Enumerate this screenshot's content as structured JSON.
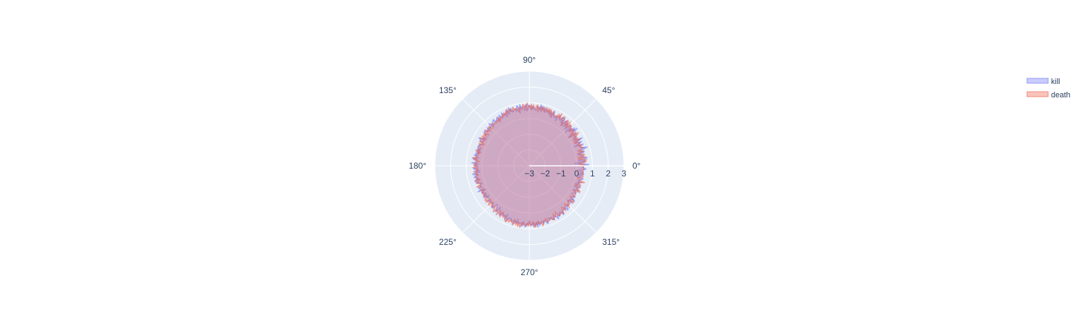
{
  "chart_data": {
    "type": "polar-area",
    "angular_axis": {
      "unit": "degrees",
      "tick_values": [
        0,
        45,
        90,
        135,
        180,
        225,
        270,
        315
      ],
      "tick_labels": [
        "0°",
        "45°",
        "90°",
        "135°",
        "180°",
        "225°",
        "270°",
        "315°"
      ],
      "direction": "counterclockwise",
      "rotation": 0
    },
    "radial_axis": {
      "range": [
        -3,
        3
      ],
      "tick_values": [
        -3,
        -2,
        -1,
        0,
        1,
        2,
        3
      ],
      "tick_labels": [
        "−3",
        "−2",
        "−1",
        "0",
        "1",
        "2",
        "3"
      ],
      "angle": 0
    },
    "grid": true,
    "legend_placement": "top-right",
    "series": [
      {
        "name": "kill",
        "color": "#636efa",
        "fill": "toself",
        "opacity": 0.5,
        "theta_step": 1,
        "r": [
          0.46,
          0.79,
          0.47,
          -0.1,
          0.38,
          0.58,
          0.12,
          0.52,
          0.71,
          0.43,
          0.47,
          0.46,
          0.33,
          0.16,
          0.56,
          0.6,
          0.31,
          0.56,
          0.86,
          0.5,
          0.44,
          0.42,
          0.69,
          0.08,
          0.49,
          0.66,
          0.24,
          0.53,
          0.8,
          0.36,
          0.43,
          0.22,
          0.54,
          0.42,
          0.48,
          0.61,
          0.04,
          0.35,
          0.84,
          0.53,
          0.74,
          0.32,
          0.58,
          0.12,
          0.63,
          0.61,
          0.21,
          0.49,
          0.66,
          0.3,
          0.67,
          0.67,
          0.23,
          0.76,
          0.38,
          0.77,
          0.63,
          0.52,
          0.68,
          0.64,
          0.32,
          0.63,
          0.52,
          0.43,
          0.55,
          0.81,
          0.36,
          0.64,
          0.72,
          0.47,
          0.76,
          0.63,
          0.68,
          0.74,
          0.52,
          0.85,
          0.66,
          0.87,
          0.51,
          0.95,
          0.61,
          0.77,
          0.8,
          0.53,
          0.62,
          0.59,
          0.72,
          0.78,
          0.56,
          0.8,
          0.85,
          0.73,
          0.51,
          0.92,
          0.85,
          0.52,
          0.72,
          0.77,
          0.71,
          0.94,
          0.38,
          0.82,
          0.89,
          0.54,
          0.69,
          0.73,
          0.61,
          0.57,
          0.83,
          0.65,
          0.92,
          0.49,
          0.7,
          0.83,
          0.4,
          0.64,
          0.66,
          0.65,
          0.8,
          0.46,
          0.55,
          0.75,
          0.52,
          0.36,
          0.69,
          0.63,
          0.54,
          0.5,
          0.73,
          0.67,
          0.6,
          0.59,
          0.37,
          0.56,
          0.71,
          0.46,
          0.52,
          0.45,
          0.61,
          0.43,
          0.48,
          0.46,
          0.61,
          0.58,
          0.37,
          0.44,
          0.31,
          0.22,
          0.35,
          0.42,
          0.24,
          0.67,
          0.51,
          0.5,
          0.28,
          0.26,
          0.24,
          0.45,
          0.46,
          0.48,
          0.47,
          0.48,
          0.26,
          0.48,
          0.25,
          0.47,
          0.27,
          0.51,
          0.42,
          0.57,
          0.35,
          0.27,
          0.58,
          0.61,
          0.39,
          0.37,
          0.34,
          0.67,
          0.25,
          0.46,
          0.5,
          0.28,
          0.32,
          0.54,
          0.47,
          0.21,
          0.43,
          0.18,
          0.61,
          0.62,
          0.29,
          0.51,
          0.6,
          0.37,
          0.48,
          0.27,
          0.59,
          0.54,
          0.55,
          0.33,
          0.19,
          0.29,
          0.37,
          0.32,
          0.54,
          0.46,
          0.43,
          0.66,
          0.15,
          0.45,
          0.48,
          0.42,
          0.24,
          0.45,
          0.28,
          0.56,
          0.18,
          0.38,
          0.29,
          0.28,
          0.31,
          0.49,
          0.34,
          0.37,
          0.33,
          0.39,
          0.3,
          0.43,
          0.57,
          0.56,
          0.22,
          0.25,
          0.33,
          0.52,
          0.63,
          0.22,
          0.4,
          0.43,
          0.65,
          0.66,
          0.44,
          0.51,
          0.6,
          0.51,
          0.49,
          0.74,
          0.37,
          0.76,
          0.68,
          0.53,
          0.6,
          0.54,
          0.71,
          0.7,
          0.61,
          0.81,
          0.62,
          0.74,
          0.47,
          0.75,
          0.68,
          0.67,
          0.73,
          0.86,
          0.57,
          0.73,
          0.89,
          0.8,
          0.65,
          0.8,
          0.5,
          0.71,
          0.79,
          0.62,
          0.87,
          0.65,
          0.83,
          0.64,
          0.94,
          0.58,
          0.84,
          0.7,
          0.71,
          0.58,
          0.79,
          0.66,
          0.64,
          0.78,
          0.85,
          0.55,
          0.53,
          0.68,
          0.6,
          0.55,
          0.74,
          0.76,
          0.56,
          0.59,
          0.71,
          0.83,
          0.57,
          0.72,
          0.68,
          0.5,
          0.51,
          0.79,
          0.62,
          0.53,
          0.54,
          0.55,
          0.44,
          0.72,
          0.68,
          0.43,
          0.51,
          0.53,
          0.39,
          0.4,
          0.27,
          0.62,
          0.42,
          0.34,
          0.63,
          0.49,
          0.32,
          0.52,
          0.46,
          0.21,
          0.27,
          0.41,
          0.44,
          0.31,
          0.18,
          0.51,
          0.38,
          0.33,
          0.12,
          0.52,
          0.45,
          0.14,
          0.33,
          0.22,
          0.45,
          0.27,
          0.31,
          0.41,
          0.51,
          0.17,
          0.3,
          0.4,
          0.19,
          0.5,
          0.26,
          0.45,
          0.33,
          0.17,
          0.52,
          0.6,
          0.37
        ]
      },
      {
        "name": "death",
        "color": "#ef553b",
        "fill": "toself",
        "opacity": 0.5,
        "theta_step": 1,
        "r": [
          0.44,
          0.5,
          0.16,
          0.33,
          0.61,
          0.43,
          0.66,
          0.48,
          0.12,
          0.63,
          0.15,
          0.54,
          0.57,
          0.34,
          0.17,
          0.58,
          0.42,
          0.21,
          0.45,
          0.63,
          0.45,
          0.48,
          0.58,
          0.29,
          0.51,
          0.5,
          0.39,
          0.18,
          0.65,
          0.22,
          0.55,
          0.45,
          0.32,
          0.6,
          0.76,
          0.15,
          0.67,
          0.3,
          0.49,
          0.65,
          0.35,
          0.59,
          0.4,
          0.66,
          0.65,
          0.71,
          0.35,
          0.8,
          0.42,
          0.78,
          0.76,
          0.47,
          0.28,
          0.63,
          0.84,
          0.73,
          0.47,
          0.53,
          0.9,
          0.58,
          0.79,
          0.53,
          0.6,
          0.56,
          0.57,
          0.64,
          0.8,
          0.39,
          0.73,
          0.84,
          0.54,
          0.86,
          0.58,
          0.87,
          0.72,
          0.56,
          0.82,
          0.61,
          0.85,
          0.66,
          0.78,
          0.46,
          0.89,
          0.85,
          0.66,
          0.69,
          0.88,
          0.58,
          0.93,
          0.63,
          0.81,
          0.79,
          0.99,
          0.51,
          0.82,
          0.75,
          0.93,
          0.74,
          0.56,
          0.76,
          0.76,
          0.51,
          0.66,
          0.75,
          0.71,
          0.7,
          0.88,
          0.63,
          0.61,
          0.83,
          0.74,
          0.66,
          0.87,
          0.59,
          0.75,
          0.53,
          0.74,
          0.52,
          0.66,
          0.56,
          0.59,
          0.51,
          0.47,
          0.71,
          0.37,
          0.56,
          0.54,
          0.41,
          0.53,
          0.47,
          0.43,
          0.51,
          0.61,
          0.5,
          0.33,
          0.36,
          0.6,
          0.48,
          0.3,
          0.51,
          0.38,
          0.62,
          0.35,
          0.23,
          0.58,
          0.4,
          0.51,
          0.39,
          0.55,
          0.22,
          0.58,
          0.41,
          0.25,
          0.43,
          0.53,
          0.16,
          0.5,
          0.39,
          0.38,
          0.44,
          0.23,
          0.37,
          0.42,
          0.34,
          0.56,
          0.19,
          0.43,
          0.29,
          0.34,
          0.42,
          0.46,
          0.38,
          0.66,
          0.31,
          0.52,
          0.18,
          0.39,
          0.43,
          0.42,
          0.55,
          0.31,
          0.43,
          0.6,
          0.27,
          0.37,
          0.29,
          0.56,
          0.42,
          0.35,
          0.46,
          0.3,
          0.45,
          0.46,
          0.4,
          0.33,
          0.58,
          0.23,
          0.48,
          0.42,
          0.49,
          0.27,
          0.33,
          0.61,
          0.42,
          0.41,
          0.28,
          0.27,
          0.45,
          0.23,
          0.46,
          0.38,
          0.45,
          0.34,
          0.5,
          0.48,
          0.37,
          0.37,
          0.52,
          0.58,
          0.44,
          0.6,
          0.25,
          0.26,
          0.52,
          0.62,
          0.24,
          0.45,
          0.55,
          0.43,
          0.49,
          0.44,
          0.61,
          0.71,
          0.52,
          0.53,
          0.46,
          0.76,
          0.42,
          0.4,
          0.61,
          0.75,
          0.37,
          0.59,
          0.68,
          0.54,
          0.65,
          0.81,
          0.87,
          0.7,
          0.72,
          0.81,
          0.62,
          0.72,
          0.76,
          0.92,
          0.5,
          0.64,
          0.86,
          0.64,
          0.92,
          0.66,
          0.96,
          0.82,
          0.6,
          0.79,
          0.7,
          0.75,
          0.84,
          0.65,
          0.81,
          0.56,
          0.83,
          0.74,
          0.73,
          0.55,
          0.92,
          0.9,
          0.62,
          0.78,
          0.54,
          0.74,
          0.69,
          0.76,
          0.9,
          0.75,
          0.58,
          0.64,
          0.49,
          0.78,
          0.72,
          0.71,
          0.6,
          0.55,
          0.72,
          0.69,
          0.78,
          0.41,
          0.64,
          0.6,
          0.34,
          0.52,
          0.73,
          0.6,
          0.67,
          0.59,
          0.63,
          0.75,
          0.44,
          0.31,
          0.68,
          0.52,
          0.44,
          0.44,
          0.27,
          0.67,
          0.46,
          0.52,
          0.54,
          0.29,
          0.33,
          0.63,
          0.64,
          0.44,
          0.21,
          0.36,
          0.38,
          0.49,
          0.45,
          0.46,
          0.4,
          0.36,
          0.19,
          0.61,
          0.6,
          0.44,
          0.34,
          0.48,
          0.27,
          0.13,
          0.5,
          0.39,
          0.31,
          0.48,
          0.66,
          0.31,
          0.27,
          0.14,
          0.47,
          0.47
        ]
      }
    ]
  }
}
